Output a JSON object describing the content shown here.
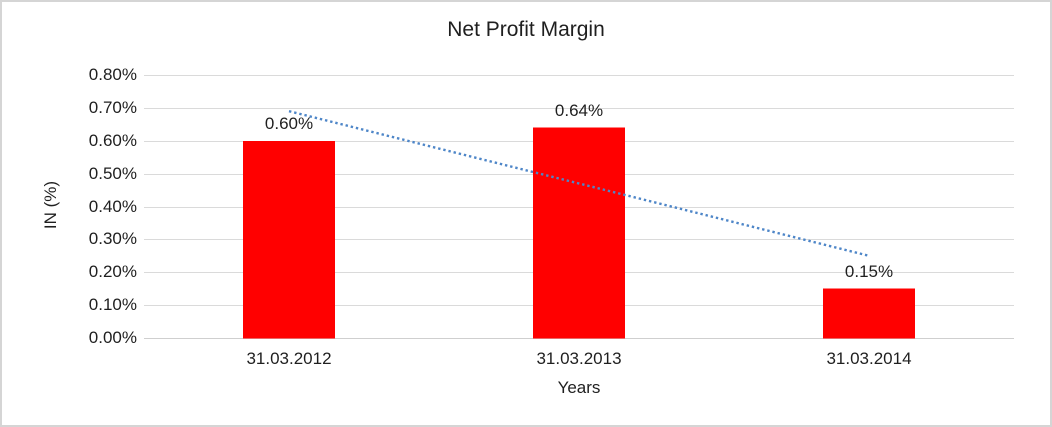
{
  "chart_data": {
    "type": "bar",
    "title": "Net Profit Margin",
    "xlabel": "Years",
    "ylabel": "IN (%)",
    "categories": [
      "31.03.2012",
      "31.03.2013",
      "31.03.2014"
    ],
    "values": [
      0.6,
      0.64,
      0.15
    ],
    "data_labels": [
      "0.60%",
      "0.64%",
      "0.15%"
    ],
    "ylim": [
      0,
      0.8
    ],
    "ytick_step": 0.1,
    "ytick_labels": [
      "0.00%",
      "0.10%",
      "0.20%",
      "0.30%",
      "0.40%",
      "0.50%",
      "0.60%",
      "0.70%",
      "0.80%"
    ],
    "grid": true,
    "legend": "none",
    "trendline": {
      "type": "linear",
      "style": "dotted",
      "start_value": 0.69,
      "end_value": 0.25
    },
    "colors": {
      "bar": "#ff0000",
      "trendline": "#4e86c8",
      "gridline": "#dadada",
      "axis_line": "#cfcfcf",
      "text": "#1f1f1f",
      "frame_border": "#d5d5d5",
      "background": "#ffffff"
    }
  }
}
